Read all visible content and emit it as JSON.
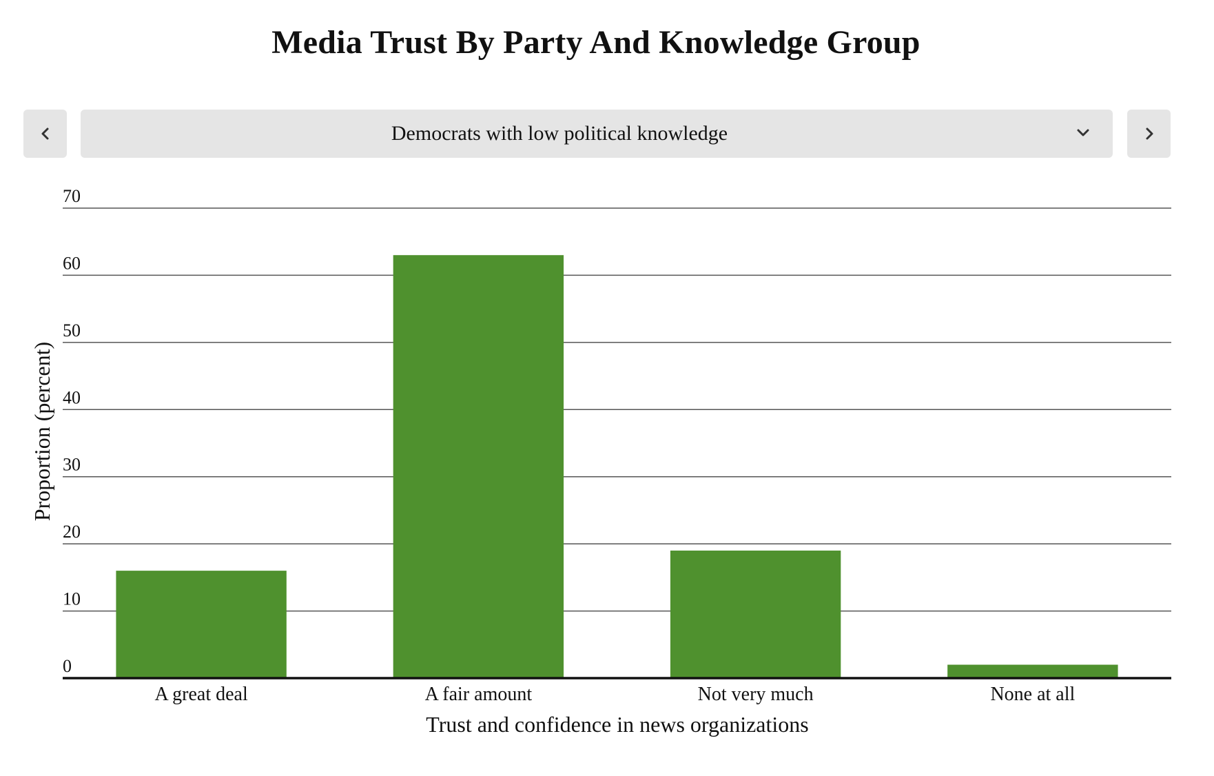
{
  "title": "Media Trust By Party And Knowledge Group",
  "selector": {
    "selected": "Democrats with low political knowledge",
    "icons": {
      "prev": "chevron-left-icon",
      "next": "chevron-right-icon",
      "dropdown": "chevron-down-icon"
    }
  },
  "colors": {
    "bar": "#4f912e",
    "grid": "#555555",
    "control_bg": "#e5e5e5"
  },
  "chart_data": {
    "type": "bar",
    "categories": [
      "A great deal",
      "A fair amount",
      "Not very much",
      "None at all"
    ],
    "values": [
      16,
      63,
      19,
      2
    ],
    "xlabel": "Trust and confidence in news organizations",
    "ylabel": "Proportion (percent)",
    "ylim": [
      0,
      70
    ],
    "yticks": [
      0,
      10,
      20,
      30,
      40,
      50,
      60,
      70
    ],
    "grid": true
  }
}
